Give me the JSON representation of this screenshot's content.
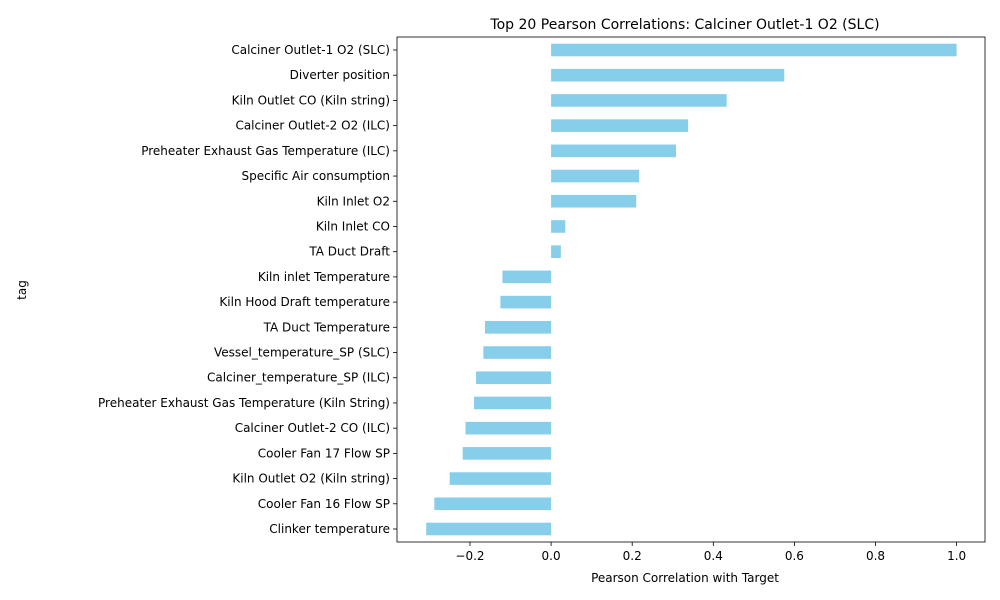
{
  "chart_data": {
    "type": "bar",
    "orientation": "horizontal",
    "title": "Top 20 Pearson Correlations: Calciner Outlet-1 O2 (SLC)",
    "xlabel": "Pearson Correlation with Target",
    "ylabel": "tag",
    "xlim": [
      -0.38,
      1.07
    ],
    "xticks": [
      -0.2,
      0.0,
      0.2,
      0.4,
      0.6,
      0.8,
      1.0
    ],
    "xtick_labels": [
      "−0.2",
      "0.0",
      "0.2",
      "0.4",
      "0.6",
      "0.8",
      "1.0"
    ],
    "bar_color": "#87ceeb",
    "grid": false,
    "categories": [
      "Calciner Outlet-1 O2 (SLC)",
      "Diverter position",
      "Kiln Outlet CO (Kiln string)",
      "Calciner Outlet-2 O2 (ILC)",
      "Preheater Exhaust Gas Temperature (ILC)",
      "Specific Air consumption",
      "Kiln Inlet O2",
      "Kiln Inlet CO",
      "TA Duct Draft",
      "Kiln inlet Temperature",
      "Kiln Hood Draft temperature",
      "TA Duct Temperature",
      "Vessel_temperature_SP (SLC)",
      "Calciner_temperature_SP (ILC)",
      "Preheater Exhaust Gas Temperature  (Kiln String)",
      "Calciner Outlet-2 CO (ILC)",
      "Cooler Fan 17 Flow SP",
      "Kiln Outlet O2 (Kiln string)",
      "Cooler Fan 16 Flow SP",
      "Clinker temperature"
    ],
    "values": [
      1.0,
      0.575,
      0.433,
      0.338,
      0.308,
      0.217,
      0.21,
      0.035,
      0.024,
      -0.12,
      -0.125,
      -0.163,
      -0.167,
      -0.185,
      -0.19,
      -0.211,
      -0.218,
      -0.25,
      -0.288,
      -0.308
    ]
  }
}
